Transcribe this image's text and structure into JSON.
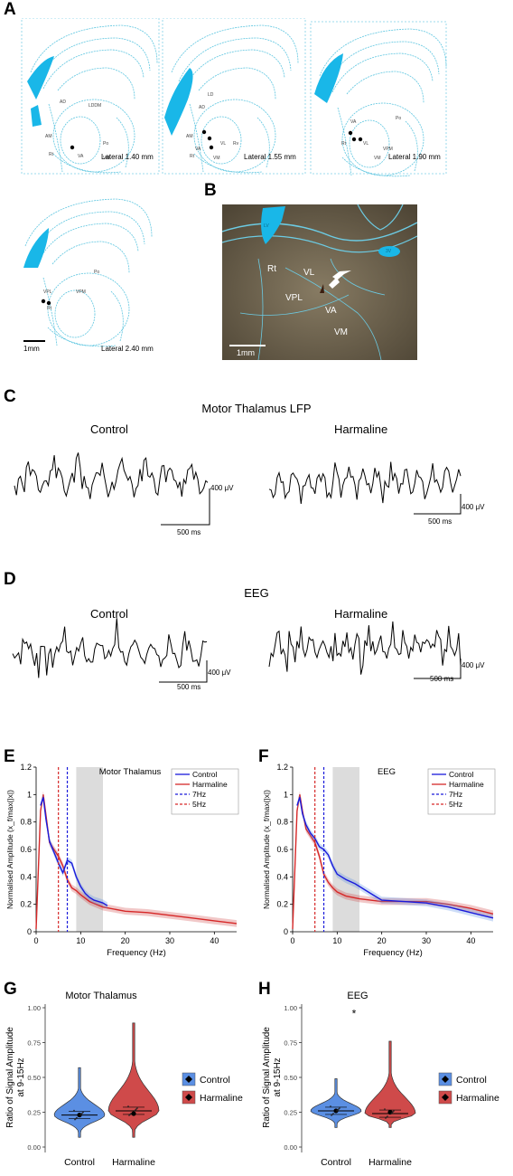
{
  "panels": {
    "A": "A",
    "B": "B",
    "C": "C",
    "D": "D",
    "E": "E",
    "F": "F",
    "G": "G",
    "H": "H"
  },
  "panel_a": {
    "sections": [
      {
        "label": "Lateral 1.40 mm",
        "regions": [
          "AD",
          "LDDM",
          "AM",
          "VA",
          "VL",
          "Po",
          "Rt",
          "VM"
        ]
      },
      {
        "label": "Lateral 1.55 mm",
        "regions": [
          "LD",
          "AD",
          "AM",
          "VA",
          "VL",
          "Po",
          "Rt",
          "VM"
        ]
      },
      {
        "label": "Lateral 1.90 mm",
        "regions": [
          "Po",
          "VA",
          "Rt",
          "VL",
          "VPM",
          "VM"
        ]
      },
      {
        "label": "Lateral 2.40 mm",
        "regions": [
          "Po",
          "VL",
          "VPL",
          "VPM",
          "Rt"
        ]
      }
    ],
    "scalebar": "1mm"
  },
  "panel_b": {
    "labels": [
      "Rt",
      "VL",
      "VPL",
      "VA",
      "VM"
    ],
    "ventricle_labels": [
      "LV",
      "3V"
    ],
    "scalebar": "1mm"
  },
  "panel_c": {
    "title": "Motor Thalamus LFP",
    "control": "Control",
    "harmaline": "Harmaline",
    "scale_v": "400 μV",
    "scale_t": "500 ms"
  },
  "panel_d": {
    "title": "EEG",
    "control": "Control",
    "harmaline": "Harmaline",
    "scale_v": "400 μV",
    "scale_t": "500 ms"
  },
  "colors": {
    "control": "#1a1adb",
    "harmaline": "#d62828",
    "control_fill": "#5b8fe3",
    "harmaline_fill": "#cf4a4a",
    "shade": "#dcdcdc",
    "atlas_line": "#5ec6e0",
    "ventricle": "#19b7e8"
  },
  "chart_data": [
    {
      "id": "E",
      "type": "line",
      "title": "Motor Thalamus",
      "xlabel": "Frequency (Hz)",
      "ylabel": "Normalised Amplitude (x_f/max(|x|)",
      "xlim": [
        0,
        45
      ],
      "ylim": [
        0,
        1.2
      ],
      "xticks": [
        0,
        10,
        20,
        30,
        40
      ],
      "yticks": [
        0,
        0.2,
        0.4,
        0.6,
        0.8,
        1,
        1.2
      ],
      "ytick_labels": [
        "0",
        "0.2",
        "0.4",
        "0.6",
        "0.8",
        "1",
        "1.2"
      ],
      "shaded_band": [
        9,
        15
      ],
      "vlines": [
        {
          "x": 7,
          "name": "7Hz"
        },
        {
          "x": 5,
          "name": "5Hz"
        }
      ],
      "legend": [
        "Control",
        "Harmaline",
        "7Hz",
        "5Hz"
      ],
      "legend_position": "top-right",
      "series": [
        {
          "name": "Control",
          "x": [
            1,
            1.6,
            2.2,
            3,
            4,
            5,
            6,
            7,
            8,
            9,
            10,
            11,
            12,
            13,
            14,
            15,
            16
          ],
          "y": [
            0.92,
            0.98,
            0.82,
            0.66,
            0.58,
            0.5,
            0.43,
            0.52,
            0.5,
            0.4,
            0.33,
            0.28,
            0.25,
            0.23,
            0.22,
            0.21,
            0.19
          ]
        },
        {
          "name": "Harmaline",
          "x": [
            0,
            1,
            1.6,
            2.2,
            3,
            4,
            5,
            6,
            7,
            8,
            9,
            10,
            12,
            15,
            20,
            25,
            30,
            35,
            40,
            45
          ],
          "y": [
            0.02,
            0.88,
            1.0,
            0.85,
            0.65,
            0.6,
            0.55,
            0.48,
            0.38,
            0.32,
            0.3,
            0.27,
            0.22,
            0.18,
            0.15,
            0.14,
            0.12,
            0.1,
            0.08,
            0.06
          ]
        }
      ]
    },
    {
      "id": "F",
      "type": "line",
      "title": "EEG",
      "xlabel": "Frequency (Hz)",
      "ylabel": "Normalised Amplitude (x_f/max(|x|)",
      "xlim": [
        0,
        45
      ],
      "ylim": [
        0,
        1.2
      ],
      "xticks": [
        0,
        10,
        20,
        30,
        40
      ],
      "yticks": [
        0,
        0.2,
        0.4,
        0.6,
        0.8,
        1,
        1.2
      ],
      "ytick_labels": [
        "0",
        "0.2",
        "0.4",
        "0.6",
        "0.8",
        "1",
        "1.2"
      ],
      "shaded_band": [
        9,
        15
      ],
      "vlines": [
        {
          "x": 7,
          "name": "7Hz"
        },
        {
          "x": 5,
          "name": "5Hz"
        }
      ],
      "legend": [
        "Control",
        "Harmaline",
        "7Hz",
        "5Hz"
      ],
      "legend_position": "top-right",
      "series": [
        {
          "name": "Control",
          "x": [
            1,
            1.6,
            2.2,
            3,
            4,
            5,
            6,
            7,
            8,
            9,
            10,
            12,
            14,
            16,
            18,
            20,
            25,
            30,
            35,
            40,
            45
          ],
          "y": [
            0.92,
            0.98,
            0.86,
            0.78,
            0.72,
            0.68,
            0.62,
            0.6,
            0.56,
            0.48,
            0.42,
            0.38,
            0.35,
            0.31,
            0.27,
            0.23,
            0.22,
            0.21,
            0.18,
            0.14,
            0.1
          ]
        },
        {
          "name": "Harmaline",
          "x": [
            0,
            1,
            1.6,
            2.2,
            3,
            4,
            5,
            6,
            7,
            8,
            9,
            10,
            12,
            15,
            20,
            25,
            30,
            35,
            40,
            45
          ],
          "y": [
            0.02,
            0.88,
            1.0,
            0.88,
            0.75,
            0.7,
            0.65,
            0.55,
            0.42,
            0.36,
            0.32,
            0.29,
            0.26,
            0.24,
            0.22,
            0.22,
            0.22,
            0.2,
            0.17,
            0.13
          ]
        }
      ]
    },
    {
      "id": "G",
      "type": "violin",
      "title": "Motor Thalamus",
      "ylabel": "Ratio of Signal Amplitude at 9-15Hz",
      "ylabel_lines": [
        "Ratio of Signal Amplitude",
        "at 9-15Hz"
      ],
      "categories": [
        "Control",
        "Harmaline"
      ],
      "ylim": [
        0,
        1.0
      ],
      "yticks": [
        "0.00",
        "0.25",
        "0.50",
        "0.75",
        "1.00"
      ],
      "legend": [
        "Control",
        "Harmaline"
      ],
      "groups": [
        {
          "name": "Control",
          "mean": 0.23,
          "median": 0.23,
          "range": [
            0.07,
            0.57
          ]
        },
        {
          "name": "Harmaline",
          "mean": 0.24,
          "median": 0.26,
          "range": [
            0.07,
            0.89
          ]
        }
      ]
    },
    {
      "id": "H",
      "type": "violin",
      "title": "EEG",
      "ylabel": "Ratio of Signal Amplitude at 9-15Hz",
      "ylabel_lines": [
        "Ratio of Signal Amplitude",
        "at 9-15Hz"
      ],
      "categories": [
        "Control",
        "Harmaline"
      ],
      "ylim": [
        0,
        1.0
      ],
      "yticks": [
        "0.00",
        "0.25",
        "0.50",
        "0.75",
        "1.00"
      ],
      "significance": "*",
      "legend": [
        "Control",
        "Harmaline"
      ],
      "groups": [
        {
          "name": "Control",
          "mean": 0.26,
          "median": 0.26,
          "range": [
            0.14,
            0.49
          ]
        },
        {
          "name": "Harmaline",
          "mean": 0.25,
          "median": 0.24,
          "range": [
            0.14,
            0.76
          ]
        }
      ]
    }
  ]
}
